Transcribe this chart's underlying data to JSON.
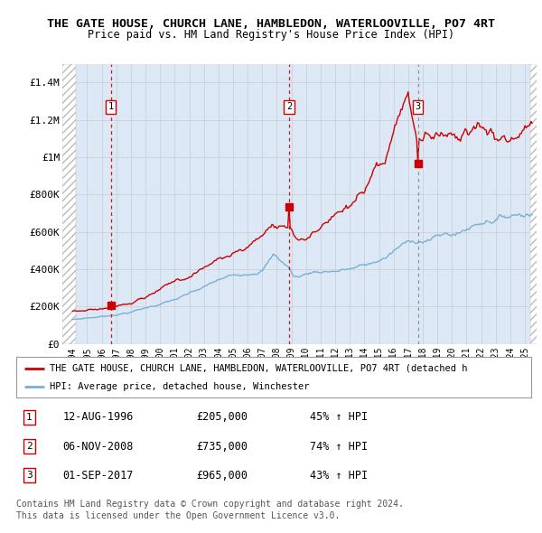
{
  "title": "THE GATE HOUSE, CHURCH LANE, HAMBLEDON, WATERLOOVILLE, PO7 4RT",
  "subtitle": "Price paid vs. HM Land Registry's House Price Index (HPI)",
  "ylim": [
    0,
    1500000
  ],
  "yticks": [
    0,
    200000,
    400000,
    600000,
    800000,
    1000000,
    1200000,
    1400000
  ],
  "ytick_labels": [
    "£0",
    "£200K",
    "£400K",
    "£600K",
    "£800K",
    "£1M",
    "£1.2M",
    "£1.4M"
  ],
  "sale_color": "#cc0000",
  "hpi_color": "#7ab0d4",
  "sale_label": "THE GATE HOUSE, CHURCH LANE, HAMBLEDON, WATERLOOVILLE, PO7 4RT (detached h",
  "hpi_label": "HPI: Average price, detached house, Winchester",
  "transactions": [
    {
      "number": 1,
      "date": "12-AUG-1996",
      "price": 205000,
      "pct": "45%",
      "direction": "↑"
    },
    {
      "number": 2,
      "date": "06-NOV-2008",
      "price": 735000,
      "pct": "74%",
      "direction": "↑"
    },
    {
      "number": 3,
      "date": "01-SEP-2017",
      "price": 965000,
      "pct": "43%",
      "direction": "↑"
    }
  ],
  "transaction_dates_decimal": [
    1996.62,
    2008.84,
    2017.67
  ],
  "tx_vline_colors": [
    "#cc0000",
    "#cc0000",
    "#888888"
  ],
  "tx_vline_styles": [
    "dashed",
    "dashed",
    "dashed"
  ],
  "footer_line1": "Contains HM Land Registry data © Crown copyright and database right 2024.",
  "footer_line2": "This data is licensed under the Open Government Licence v3.0.",
  "grid_color": "#cccccc",
  "panel_bg": "#dce8f5"
}
